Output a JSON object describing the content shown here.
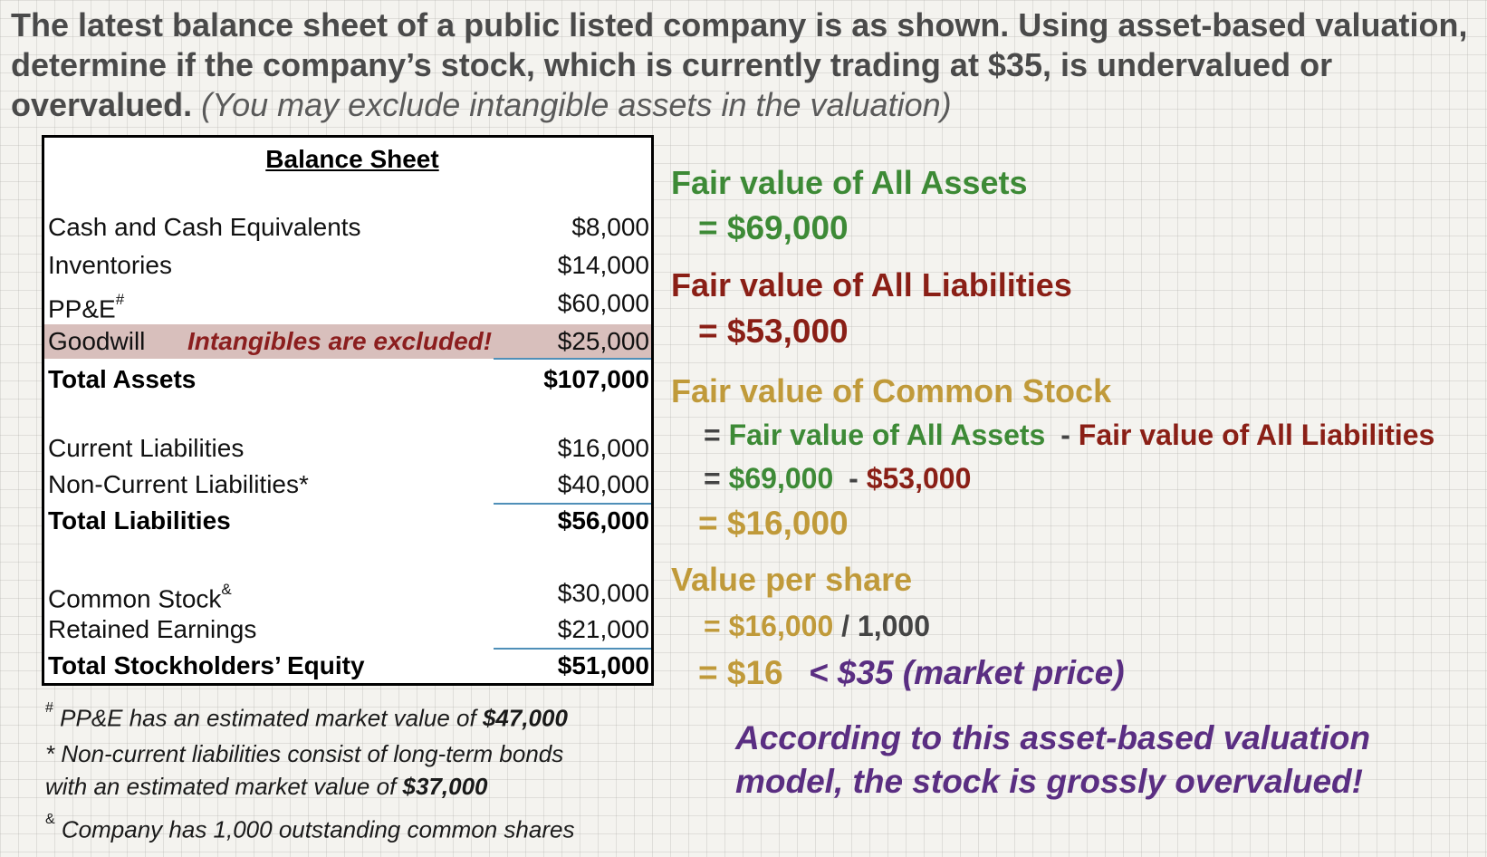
{
  "question": {
    "main": "The latest balance sheet of a public listed company is as shown.  Using asset-based valuation, determine if the company’s stock, which is currently trading at $35, is undervalued or overvalued.",
    "note": "(You may exclude intangible assets in the valuation)"
  },
  "balance_sheet": {
    "title": "Balance Sheet",
    "assets": [
      {
        "label": "Cash and Cash Equivalents",
        "value": "$8,000"
      },
      {
        "label": "Inventories",
        "value": "$14,000"
      },
      {
        "label": "PP&E",
        "sup": "#",
        "value": "$60,000"
      },
      {
        "label": "Goodwill",
        "value": "$25,000",
        "note": "Intangibles are excluded!"
      }
    ],
    "total_assets": {
      "label": "Total Assets",
      "value": "$107,000"
    },
    "liabilities": [
      {
        "label": "Current Liabilities",
        "value": "$16,000"
      },
      {
        "label": "Non-Current Liabilities*",
        "value": "$40,000"
      }
    ],
    "total_liabilities": {
      "label": "Total Liabilities",
      "value": "$56,000"
    },
    "equity": [
      {
        "label": "Common Stock",
        "sup": "&",
        "value": "$30,000"
      },
      {
        "label": "Retained Earnings",
        "value": "$21,000"
      }
    ],
    "total_equity": {
      "label": "Total Stockholders’ Equity",
      "value": "$51,000"
    }
  },
  "footnotes": {
    "ppe_mark": "#",
    "ppe_text": " PP&E has an estimated market value of ",
    "ppe_value": "$47,000",
    "ncl_line1": "* Non-current liabilities consist of long-term bonds",
    "ncl_line2": "with an estimated market value of ",
    "ncl_value": "$37,000",
    "shares_mark": "&",
    "shares_text": " Company has 1,000 outstanding common shares"
  },
  "calc": {
    "assets_title": "Fair value of All Assets",
    "assets_value": "= $69,000",
    "liab_title": "Fair value of All Liabilities",
    "liab_value": "= $53,000",
    "cs_title": "Fair value of Common Stock",
    "cs_eq": "=",
    "cs_term1": "Fair value of All Assets",
    "cs_minus": "-",
    "cs_term2": "Fair value of All Liabilities",
    "cs_num_eq": "=",
    "cs_num1": "$69,000",
    "cs_num_minus": "-",
    "cs_num2": "$53,000",
    "cs_result": "= $16,000",
    "vps_title": "Value per share",
    "vps_eq": "= $16,000",
    "vps_div": "/ 1,000",
    "vps_result": "= $16",
    "vps_compare": "< $35 (market price)",
    "conclusion_1": "According to this asset-based valuation",
    "conclusion_2": "model, the stock is grossly overvalued!"
  }
}
